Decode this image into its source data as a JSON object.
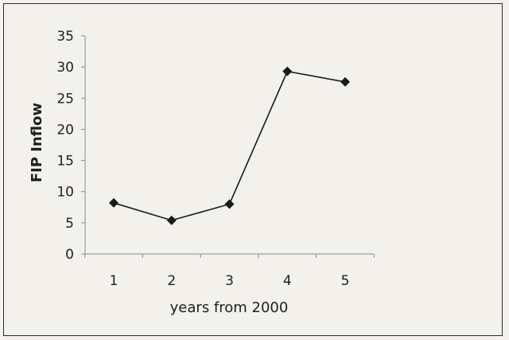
{
  "chart_data": {
    "type": "line",
    "title": "",
    "xlabel": "years from 2000",
    "ylabel": "FIP Inflow",
    "x": [
      1,
      2,
      3,
      4,
      5
    ],
    "series": [
      {
        "values": [
          8.2,
          5.4,
          8.0,
          29.3,
          27.6
        ]
      }
    ],
    "ylim": [
      0,
      35
    ],
    "yticks": [
      "0",
      "5",
      "10",
      "15",
      "20",
      "25",
      "30",
      "35"
    ],
    "xticks": [
      "1",
      "2",
      "3",
      "4",
      "5"
    ],
    "grid": false,
    "legend": "none",
    "colors": {
      "line": "#1a1a1a",
      "marker": "#1a1a1a"
    },
    "marker": "diamond"
  }
}
